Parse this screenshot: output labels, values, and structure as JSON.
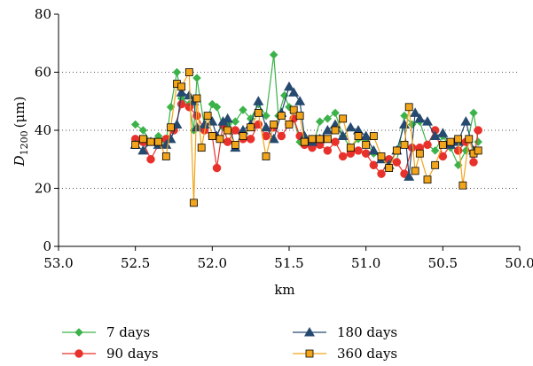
{
  "chart_data": {
    "type": "line",
    "xlabel": "km",
    "ylabel_main": "D",
    "ylabel_sub": "1200",
    "ylabel_unit": "(μm)",
    "xlim": [
      53.0,
      50.0
    ],
    "ylim": [
      0,
      80
    ],
    "x_ticks": [
      "53.0",
      "52.5",
      "52.0",
      "51.5",
      "51.0",
      "50.5",
      "50.0"
    ],
    "y_ticks": [
      "0",
      "20",
      "40",
      "60",
      "80"
    ],
    "x_tick_values": [
      53.0,
      52.5,
      52.0,
      51.5,
      51.0,
      50.5,
      50.0
    ],
    "y_tick_values": [
      0,
      20,
      40,
      60,
      80
    ],
    "grid": "horizontal dotted",
    "legend_position": "bottom",
    "series": [
      {
        "name": "7 days",
        "color": "#3cb34a",
        "marker": "diamond",
        "x": [
          52.5,
          52.45,
          52.4,
          52.35,
          52.3,
          52.27,
          52.23,
          52.2,
          52.15,
          52.12,
          52.1,
          52.05,
          52.0,
          51.97,
          51.93,
          51.9,
          51.85,
          51.8,
          51.75,
          51.7,
          51.65,
          51.6,
          51.57,
          51.53,
          51.5,
          51.47,
          51.43,
          51.4,
          51.35,
          51.3,
          51.25,
          51.2,
          51.15,
          51.1,
          51.05,
          51.0,
          50.95,
          50.9,
          50.85,
          50.8,
          50.75,
          50.7,
          50.65,
          50.6,
          50.55,
          50.5,
          50.45,
          50.4,
          50.35,
          50.3,
          50.27
        ],
        "y": [
          42,
          40,
          36,
          38,
          36,
          48,
          60,
          51,
          49,
          40,
          58,
          41,
          49,
          48,
          41,
          42,
          43,
          47,
          44,
          49,
          45,
          66,
          45,
          52,
          48,
          44,
          36,
          35,
          34,
          43,
          44,
          46,
          38,
          34,
          37,
          36,
          32,
          31,
          30,
          29,
          45,
          42,
          43,
          35,
          33,
          38,
          34,
          28,
          33,
          46,
          36
        ]
      },
      {
        "name": "90 days",
        "color": "#e8312b",
        "marker": "circle",
        "x": [
          52.5,
          52.45,
          52.4,
          52.35,
          52.3,
          52.25,
          52.2,
          52.15,
          52.1,
          52.05,
          52.0,
          51.97,
          51.93,
          51.9,
          51.85,
          51.8,
          51.75,
          51.7,
          51.65,
          51.6,
          51.55,
          51.5,
          51.47,
          51.43,
          51.4,
          51.35,
          51.3,
          51.25,
          51.2,
          51.15,
          51.1,
          51.05,
          51.0,
          50.95,
          50.9,
          50.85,
          50.8,
          50.75,
          50.7,
          50.65,
          50.6,
          50.55,
          50.5,
          50.45,
          50.4,
          50.35,
          50.3,
          50.27
        ],
        "y": [
          37,
          36,
          30,
          35,
          37,
          40,
          49,
          48,
          45,
          40,
          38,
          27,
          42,
          36,
          40,
          37,
          37,
          42,
          38,
          41,
          38,
          42,
          44,
          38,
          35,
          34,
          35,
          33,
          36,
          31,
          32,
          33,
          32,
          28,
          25,
          30,
          29,
          25,
          34,
          34,
          35,
          40,
          31,
          35,
          33,
          36,
          29,
          40
        ]
      },
      {
        "name": "180 days",
        "color": "#25496f",
        "marker": "triangle",
        "x": [
          52.5,
          52.45,
          52.4,
          52.35,
          52.3,
          52.27,
          52.23,
          52.2,
          52.15,
          52.12,
          52.1,
          52.05,
          52.0,
          51.97,
          51.93,
          51.9,
          51.85,
          51.8,
          51.75,
          51.7,
          51.65,
          51.6,
          51.55,
          51.5,
          51.47,
          51.43,
          51.4,
          51.35,
          51.3,
          51.25,
          51.2,
          51.15,
          51.1,
          51.05,
          51.0,
          50.95,
          50.9,
          50.85,
          50.8,
          50.75,
          50.72,
          50.68,
          50.65,
          50.6,
          50.55,
          50.5,
          50.45,
          50.4,
          50.35,
          50.3
        ],
        "y": [
          35,
          33,
          36,
          35,
          35,
          37,
          42,
          53,
          52,
          50,
          41,
          42,
          43,
          38,
          43,
          44,
          34,
          40,
          42,
          50,
          41,
          37,
          46,
          55,
          53,
          50,
          38,
          36,
          37,
          40,
          42,
          38,
          41,
          40,
          38,
          33,
          30,
          28,
          33,
          42,
          24,
          46,
          44,
          43,
          38,
          39,
          35,
          36,
          43,
          33
        ]
      },
      {
        "name": "360 days",
        "color": "#f2a51a",
        "marker": "square",
        "x": [
          52.5,
          52.45,
          52.4,
          52.35,
          52.3,
          52.27,
          52.23,
          52.2,
          52.15,
          52.12,
          52.1,
          52.07,
          52.03,
          52.0,
          51.95,
          51.9,
          51.85,
          51.8,
          51.75,
          51.7,
          51.65,
          51.6,
          51.55,
          51.5,
          51.47,
          51.43,
          51.4,
          51.35,
          51.3,
          51.25,
          51.2,
          51.15,
          51.1,
          51.05,
          51.0,
          50.95,
          50.9,
          50.85,
          50.8,
          50.75,
          50.72,
          50.68,
          50.65,
          50.6,
          50.55,
          50.5,
          50.45,
          50.4,
          50.37,
          50.33,
          50.3,
          50.27
        ],
        "y": [
          35,
          37,
          36,
          36,
          31,
          41,
          56,
          55,
          60,
          15,
          51,
          34,
          45,
          38,
          37,
          40,
          35,
          38,
          41,
          46,
          31,
          42,
          45,
          42,
          47,
          45,
          36,
          37,
          37,
          37,
          40,
          44,
          34,
          38,
          35,
          38,
          31,
          27,
          33,
          35,
          48,
          26,
          32,
          23,
          28,
          35,
          36,
          37,
          21,
          37,
          32,
          33
        ]
      }
    ]
  }
}
